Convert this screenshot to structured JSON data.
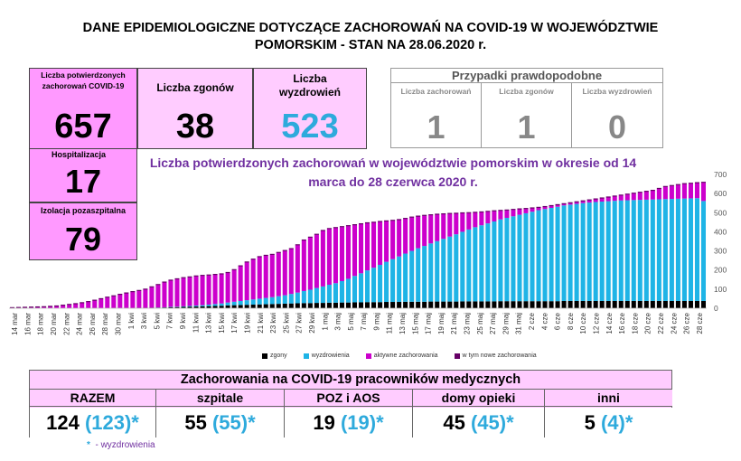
{
  "title": {
    "line1": "DANE EPIDEMIOLOGICZNE DOTYCZĄCE ZACHOROWAŃ NA COVID-19 W WOJEWÓDZTWIE",
    "line2": "POMORSKIM - STAN NA 28.06.2020 r."
  },
  "stats": {
    "confirmed_label": "Liczba potwierdzonych zachorowań COVID-19",
    "confirmed_value": "657",
    "deaths_label": "Liczba zgonów",
    "deaths_value": "38",
    "recovered_label": "Liczba wyzdrowień",
    "recovered_value": "523",
    "hosp_label": "Hospitalizacja",
    "hosp_value": "17",
    "isolation_label": "Izolacja pozaszpitalna",
    "isolation_value": "79"
  },
  "probable": {
    "header": "Przypadki prawdopodobne",
    "cases_label": "Liczba zachorowań",
    "cases_value": "1",
    "deaths_label": "Liczba zgonów",
    "deaths_value": "1",
    "recovered_label": "Liczba wyzdrowień",
    "recovered_value": "0"
  },
  "colors": {
    "deaths": "#000000",
    "recovered": "#1fb4e6",
    "active": "#cc00cc",
    "new": "#660066"
  },
  "chart_data": {
    "type": "bar",
    "title": "Liczba potwierdzonych zachorowań w województwie pomorskim w okresie od 14 marca do 28 czerwca 2020 r.",
    "ylim": [
      0,
      700
    ],
    "yticks": [
      0,
      100,
      200,
      300,
      400,
      500,
      600,
      700
    ],
    "tick_labels": [
      "14 mar",
      "16 mar",
      "18 mar",
      "20 mar",
      "22 mar",
      "24 mar",
      "26 mar",
      "28 mar",
      "30 mar",
      "1 kwi",
      "3 kwi",
      "5 kwi",
      "7 kwi",
      "9 kwi",
      "11 kwi",
      "13 kwi",
      "15 kwi",
      "17 kwi",
      "19 kwi",
      "21 kwi",
      "23 kwi",
      "25 kwi",
      "27 kwi",
      "29 kwi",
      "1 maj",
      "3 maj",
      "5 maj",
      "7 maj",
      "9 maj",
      "11 maj",
      "13 maj",
      "15 maj",
      "17 maj",
      "19 maj",
      "21 maj",
      "23 maj",
      "25 maj",
      "27 maj",
      "29 maj",
      "31 maj",
      "2 cze",
      "4 cze",
      "6 cze",
      "8 cze",
      "10 cze",
      "12 cze",
      "14 cze",
      "16 cze",
      "18 cze",
      "20 cze",
      "22 cze",
      "24 cze",
      "26 cze",
      "28 cze"
    ],
    "legend": [
      "zgony",
      "wyzdrowienia",
      "aktywne zachorowania",
      "w tym nowe zachorowania"
    ],
    "legend_position": "bottom",
    "stacked": true,
    "totals": [
      1,
      2,
      3,
      4,
      5,
      6,
      8,
      10,
      14,
      18,
      22,
      27,
      33,
      40,
      48,
      56,
      63,
      71,
      78,
      85,
      91,
      98,
      110,
      122,
      135,
      145,
      152,
      158,
      162,
      167,
      170,
      172,
      175,
      178,
      185,
      200,
      220,
      240,
      255,
      268,
      275,
      280,
      290,
      300,
      310,
      330,
      355,
      370,
      385,
      405,
      415,
      420,
      425,
      430,
      435,
      440,
      445,
      448,
      452,
      455,
      458,
      462,
      468,
      475,
      480,
      484,
      487,
      490,
      492,
      494,
      495,
      497,
      498,
      500,
      502,
      505,
      508,
      510,
      512,
      515,
      518,
      520,
      523,
      526,
      530,
      535,
      540,
      545,
      550,
      555,
      560,
      565,
      570,
      575,
      580,
      585,
      590,
      595,
      600,
      605,
      610,
      615,
      625,
      635,
      640,
      645,
      650,
      652,
      655,
      657
    ],
    "deaths": [
      0,
      0,
      0,
      0,
      0,
      0,
      0,
      0,
      0,
      0,
      0,
      0,
      0,
      0,
      0,
      0,
      1,
      1,
      1,
      1,
      2,
      2,
      3,
      3,
      4,
      5,
      6,
      7,
      8,
      9,
      10,
      11,
      12,
      13,
      15,
      16,
      17,
      18,
      19,
      20,
      21,
      22,
      23,
      24,
      25,
      26,
      27,
      27,
      28,
      28,
      29,
      29,
      30,
      30,
      31,
      31,
      32,
      32,
      32,
      33,
      33,
      33,
      34,
      34,
      34,
      34,
      35,
      35,
      35,
      35,
      35,
      36,
      36,
      36,
      36,
      36,
      36,
      37,
      37,
      37,
      37,
      37,
      37,
      37,
      37,
      37,
      37,
      38,
      38,
      38,
      38,
      38,
      38,
      38,
      38,
      38,
      38,
      38,
      38,
      38,
      38,
      38,
      38,
      38,
      38,
      38,
      38,
      38,
      38,
      38
    ],
    "recovered": [
      0,
      0,
      0,
      0,
      0,
      0,
      0,
      0,
      0,
      0,
      0,
      0,
      0,
      0,
      0,
      0,
      0,
      0,
      0,
      0,
      0,
      0,
      0,
      1,
      1,
      2,
      2,
      3,
      4,
      5,
      6,
      8,
      10,
      12,
      15,
      18,
      21,
      24,
      27,
      30,
      33,
      36,
      40,
      44,
      50,
      56,
      63,
      70,
      78,
      86,
      94,
      102,
      112,
      124,
      138,
      152,
      166,
      180,
      195,
      210,
      224,
      238,
      252,
      266,
      280,
      292,
      304,
      316,
      328,
      340,
      352,
      364,
      376,
      388,
      398,
      408,
      418,
      428,
      436,
      444,
      452,
      460,
      468,
      476,
      482,
      488,
      494,
      500,
      504,
      508,
      512,
      515,
      518,
      520,
      522,
      524,
      526,
      527,
      528,
      529,
      530,
      531,
      532,
      533,
      534,
      535,
      536,
      537,
      538,
      523
    ]
  },
  "medical": {
    "header": "Zachorowania na COVID-19 pracowników medycznych",
    "cols": [
      {
        "label": "RAZEM",
        "value": "124",
        "rec": "(123)*"
      },
      {
        "label": "szpitale",
        "value": "55",
        "rec": "(55)*"
      },
      {
        "label": "POZ i AOS",
        "value": "19",
        "rec": "(19)*"
      },
      {
        "label": "domy opieki",
        "value": "45",
        "rec": "(45)*"
      },
      {
        "label": "inni",
        "value": "5",
        "rec": "(4)*"
      }
    ],
    "note_star": "*",
    "note_text": "- wyzdrowienia"
  }
}
